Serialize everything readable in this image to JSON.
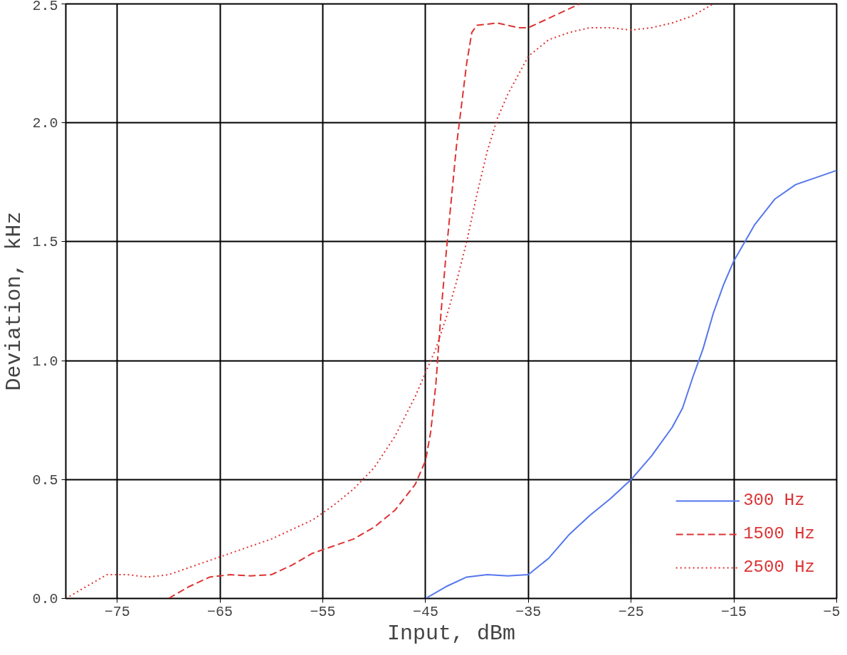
{
  "chart_data": {
    "type": "line",
    "xlabel": "Input, dBm",
    "ylabel": "Deviation, kHz",
    "xlim": [
      -80,
      -5
    ],
    "xticks": [
      -75,
      -65,
      -55,
      -45,
      -35,
      -25,
      -15,
      -5
    ],
    "ylim": [
      0,
      2.5
    ],
    "yticks": [
      {
        "value": 0,
        "label": "0.0"
      },
      0.5,
      {
        "value": 1,
        "label": "1.0"
      },
      1.5,
      {
        "value": 2,
        "label": "2.0"
      },
      2.5
    ],
    "grid": true,
    "legend": "bottom right",
    "marker": "none",
    "series": [
      {
        "name": "300 Hz",
        "color": "#5577ee",
        "line_style": "solid",
        "x": [
          -45,
          -43,
          -41,
          -39,
          -37,
          -35,
          -33,
          -31,
          -29,
          -27,
          -25,
          -23,
          -21,
          -20,
          -19,
          -18,
          -17,
          -16,
          -15,
          -13,
          -11,
          -9,
          -7,
          -5
        ],
        "values": [
          0,
          0.05,
          0.09,
          0.1,
          0.095,
          0.1,
          0.17,
          0.27,
          0.35,
          0.42,
          0.5,
          0.6,
          0.72,
          0.8,
          0.93,
          1.05,
          1.2,
          1.32,
          1.42,
          1.57,
          1.68,
          1.74,
          1.77,
          1.8
        ]
      },
      {
        "name": "1500 Hz",
        "color": "#dd3333",
        "line_style": "dashed",
        "x": [
          -70,
          -68,
          -66,
          -64,
          -62,
          -60,
          -58,
          -56,
          -54,
          -52,
          -50,
          -48,
          -46,
          -45,
          -44.5,
          -44,
          -43.5,
          -43,
          -42,
          -41,
          -40.5,
          -40,
          -38,
          -36,
          -35,
          -33,
          -31,
          -30
        ],
        "values": [
          0,
          0.05,
          0.09,
          0.1,
          0.095,
          0.1,
          0.14,
          0.19,
          0.22,
          0.25,
          0.3,
          0.37,
          0.48,
          0.58,
          0.7,
          0.9,
          1.2,
          1.45,
          1.9,
          2.25,
          2.38,
          2.41,
          2.42,
          2.4,
          2.4,
          2.44,
          2.48,
          2.5
        ]
      },
      {
        "name": "2500 Hz",
        "color": "#dd3333",
        "line_style": "dotted",
        "x": [
          -80,
          -78,
          -76,
          -74,
          -72,
          -70,
          -68,
          -66,
          -64,
          -62,
          -60,
          -58,
          -56,
          -54,
          -52,
          -50,
          -48,
          -46,
          -45,
          -44,
          -43,
          -42,
          -41,
          -40,
          -39,
          -38,
          -37,
          -36,
          -35,
          -33,
          -31,
          -29,
          -27,
          -25,
          -23,
          -21,
          -19,
          -17
        ],
        "values": [
          0,
          0.05,
          0.1,
          0.1,
          0.09,
          0.1,
          0.13,
          0.16,
          0.19,
          0.22,
          0.25,
          0.29,
          0.33,
          0.39,
          0.46,
          0.55,
          0.68,
          0.85,
          0.95,
          1.05,
          1.18,
          1.33,
          1.5,
          1.7,
          1.88,
          2.02,
          2.12,
          2.2,
          2.28,
          2.35,
          2.38,
          2.4,
          2.4,
          2.39,
          2.4,
          2.42,
          2.45,
          2.5
        ]
      }
    ]
  }
}
